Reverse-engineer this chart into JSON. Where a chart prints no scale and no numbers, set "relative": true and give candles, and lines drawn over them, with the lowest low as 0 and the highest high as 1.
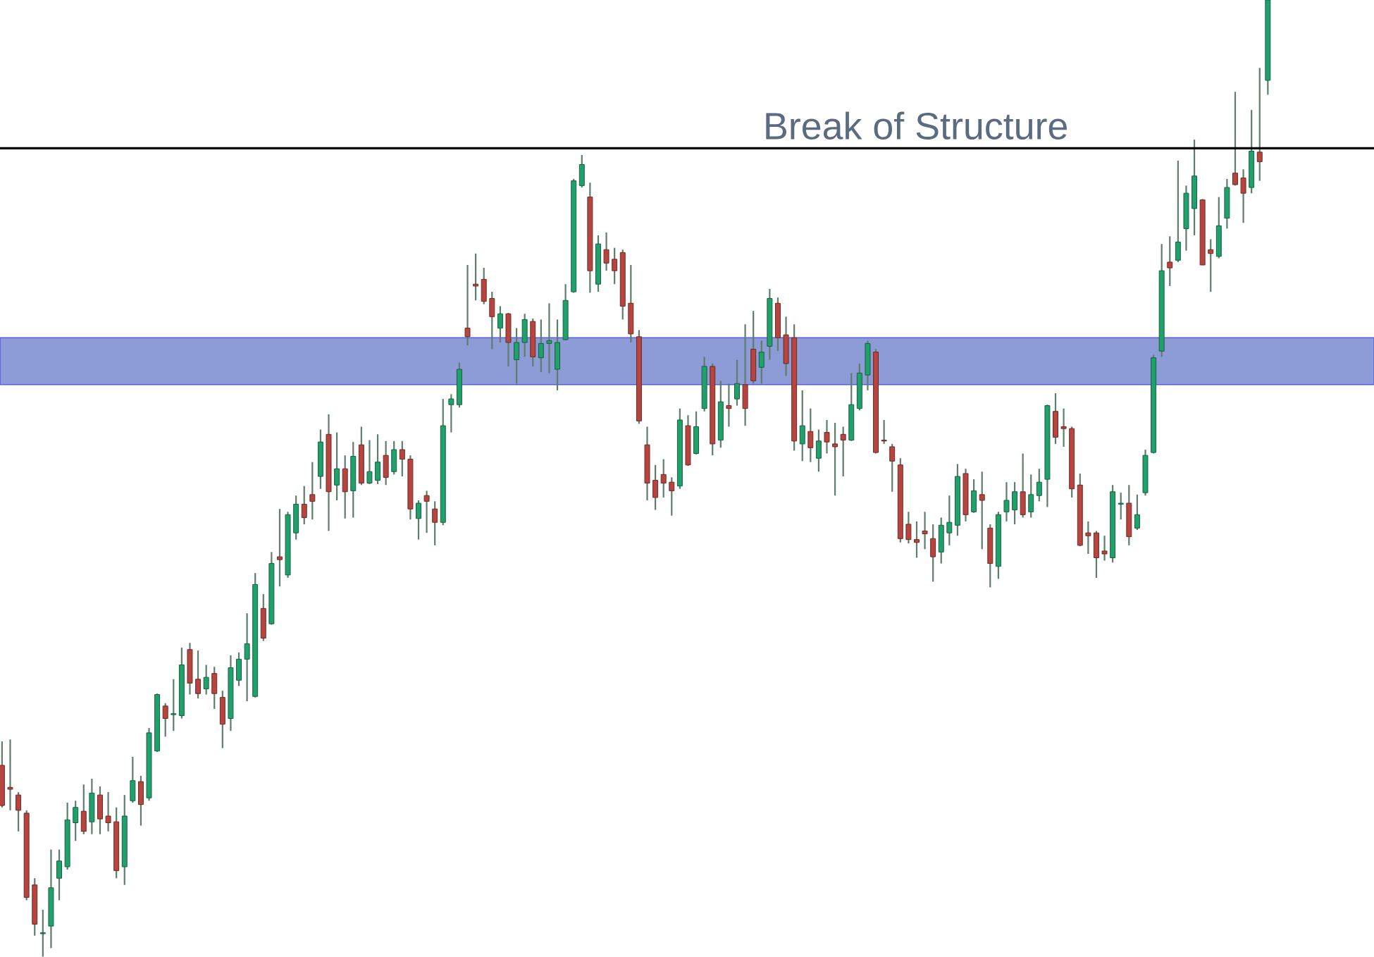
{
  "chart_data": {
    "type": "candlestick",
    "relative": true,
    "categories": [
      null,
      null,
      null,
      null,
      null,
      null,
      null,
      null,
      null,
      null,
      null,
      null,
      null,
      null,
      null,
      null,
      null,
      null,
      null,
      null,
      null,
      null,
      null,
      null,
      null,
      null,
      null,
      null,
      null,
      null,
      null,
      null,
      null,
      null,
      null,
      null,
      null,
      null,
      null,
      null,
      null,
      null,
      null,
      null,
      null,
      null,
      null,
      null,
      null,
      null,
      null,
      null,
      null,
      null,
      null,
      null,
      null,
      null,
      null,
      null,
      null,
      null,
      null,
      null,
      null,
      null,
      null,
      null,
      null,
      null,
      null,
      null,
      null,
      null,
      null,
      null,
      null,
      null,
      null,
      null,
      null,
      null,
      null,
      null,
      null,
      null,
      null,
      null,
      null,
      null,
      null,
      null,
      null,
      null,
      null,
      null,
      null,
      null,
      null,
      null,
      null,
      null,
      null,
      null,
      null,
      null,
      null,
      null,
      null,
      null,
      null,
      null,
      null,
      null,
      null,
      null,
      null,
      null,
      null,
      null,
      null,
      null,
      null,
      null,
      null,
      null,
      null,
      null,
      null,
      null,
      null,
      null,
      null,
      null,
      null,
      null,
      null,
      null,
      null,
      null,
      null,
      null,
      null,
      null,
      null,
      null,
      null,
      null,
      null,
      null,
      null,
      null,
      null,
      null,
      null,
      null
    ],
    "colors": [
      "#b5453e",
      "#b5453e",
      "#b5453e",
      "#b5453e",
      "#b5453e",
      "#22a06b",
      "#22a06b",
      "#22a06b",
      "#22a06b",
      "#22a06b",
      "#b5453e",
      "#22a06b",
      "#b5453e",
      "#b5453e",
      "#b5453e",
      "#22a06b",
      "#22a06b",
      "#b5453e",
      "#22a06b",
      "#22a06b",
      "#b5453e",
      "#22a06b",
      "#22a06b",
      "#b5453e",
      "#b5453e",
      "#22a06b",
      "#b5453e",
      "#b5453e",
      "#22a06b",
      "#22a06b",
      "#22a06b",
      "#22a06b",
      "#b5453e",
      "#22a06b",
      "#b5453e",
      "#22a06b",
      "#22a06b",
      "#b5453e",
      "#b5453e",
      "#22a06b",
      "#b5453e",
      "#22a06b",
      "#b5453e",
      "#22a06b",
      "#b5453e",
      "#22a06b",
      "#22a06b",
      "#b5453e",
      "#22a06b",
      "#b5453e",
      "#b5453e",
      "#22a06b",
      "#b5453e",
      "#b5453e",
      "#22a06b",
      "#22a06b",
      "#22a06b",
      "#b5453e",
      "#b5453e",
      "#b5453e",
      "#b5453e",
      "#22a06b",
      "#b5453e",
      "#22a06b",
      "#22a06b",
      "#b5453e",
      "#22a06b",
      "#22a06b",
      "#22a06b",
      "#22a06b",
      "#22a06b",
      "#22a06b",
      "#b5453e",
      "#22a06b",
      "#b5453e",
      "#b5453e",
      "#b5453e",
      "#b5453e",
      "#b5453e",
      "#b5453e",
      "#b5453e",
      "#b5453e",
      "#b5453e",
      "#22a06b",
      "#b5453e",
      "#22a06b",
      "#22a06b",
      "#b5453e",
      "#22a06b",
      "#b5453e",
      "#22a06b",
      "#b5453e",
      "#b5453e",
      "#22a06b",
      "#22a06b",
      "#b5453e",
      "#b5453e",
      "#b5453e",
      "#22a06b",
      "#b5453e",
      "#22a06b",
      "#b5453e",
      "#b5453e",
      "#b5453e",
      "#22a06b",
      "#22a06b",
      "#22a06b",
      "#b5453e",
      "#b5453e",
      "#b5453e",
      "#b5453e",
      "#b5453e",
      "#b5453e",
      "#b5453e",
      "#b5453e",
      "#22a06b",
      "#22a06b",
      "#22a06b",
      "#b5453e",
      "#22a06b",
      "#b5453e",
      "#b5453e",
      "#22a06b",
      "#22a06b",
      "#22a06b",
      "#b5453e",
      "#22a06b",
      "#22a06b",
      "#22a06b",
      "#b5453e",
      "#b5453e",
      "#b5453e",
      "#b5453e",
      "#b5453e",
      "#b5453e",
      "#b5453e",
      "#22a06b",
      "#22a06b",
      "#b5453e",
      "#22a06b",
      "#22a06b",
      "#22a06b",
      "#22a06b",
      "#b5453e",
      "#22a06b",
      "#22a06b",
      "#22a06b",
      "#b5453e",
      "#b5453e",
      "#22a06b",
      "#22a06b",
      "#b5453e",
      "#b5453e",
      "#22a06b",
      "#b5453e",
      "#22a06b"
    ],
    "ohlc": [
      [
        0.2,
        0.225,
        0.156,
        0.158
      ],
      [
        0.177,
        0.227,
        0.153,
        0.175
      ],
      [
        0.169,
        0.172,
        0.131,
        0.153
      ],
      [
        0.15,
        0.153,
        0.059,
        0.062
      ],
      [
        0.075,
        0.082,
        0.022,
        0.034
      ],
      [
        0.024,
        0.049,
        0.0,
        0.025
      ],
      [
        0.032,
        0.112,
        0.009,
        0.072
      ],
      [
        0.082,
        0.112,
        0.059,
        0.1
      ],
      [
        0.094,
        0.161,
        0.091,
        0.143
      ],
      [
        0.14,
        0.163,
        0.121,
        0.156
      ],
      [
        0.152,
        0.18,
        0.128,
        0.131
      ],
      [
        0.141,
        0.186,
        0.128,
        0.171
      ],
      [
        0.169,
        0.178,
        0.128,
        0.144
      ],
      [
        0.147,
        0.172,
        0.131,
        0.14
      ],
      [
        0.141,
        0.156,
        0.082,
        0.09
      ],
      [
        0.094,
        0.169,
        0.075,
        0.147
      ],
      [
        0.163,
        0.209,
        0.161,
        0.184
      ],
      [
        0.183,
        0.189,
        0.137,
        0.159
      ],
      [
        0.166,
        0.239,
        0.163,
        0.234
      ],
      [
        0.215,
        0.275,
        0.214,
        0.274
      ],
      [
        0.262,
        0.265,
        0.23,
        0.249
      ],
      [
        0.253,
        0.29,
        0.236,
        0.254
      ],
      [
        0.252,
        0.323,
        0.249,
        0.305
      ],
      [
        0.321,
        0.328,
        0.274,
        0.286
      ],
      [
        0.29,
        0.32,
        0.27,
        0.275
      ],
      [
        0.28,
        0.305,
        0.274,
        0.292
      ],
      [
        0.296,
        0.303,
        0.259,
        0.275
      ],
      [
        0.271,
        0.278,
        0.218,
        0.243
      ],
      [
        0.249,
        0.315,
        0.236,
        0.302
      ],
      [
        0.289,
        0.318,
        0.283,
        0.311
      ],
      [
        0.311,
        0.359,
        0.267,
        0.327
      ],
      [
        0.272,
        0.401,
        0.271,
        0.389
      ],
      [
        0.364,
        0.379,
        0.33,
        0.333
      ],
      [
        0.348,
        0.423,
        0.347,
        0.411
      ],
      [
        0.418,
        0.468,
        0.387,
        0.415
      ],
      [
        0.399,
        0.465,
        0.396,
        0.462
      ],
      [
        0.443,
        0.482,
        0.436,
        0.473
      ],
      [
        0.473,
        0.492,
        0.452,
        0.459
      ],
      [
        0.483,
        0.517,
        0.457,
        0.476
      ],
      [
        0.502,
        0.551,
        0.489,
        0.538
      ],
      [
        0.546,
        0.567,
        0.445,
        0.486
      ],
      [
        0.493,
        0.548,
        0.477,
        0.51
      ],
      [
        0.51,
        0.524,
        0.458,
        0.486
      ],
      [
        0.487,
        0.538,
        0.459,
        0.523
      ],
      [
        0.535,
        0.554,
        0.493,
        0.495
      ],
      [
        0.495,
        0.54,
        0.494,
        0.507
      ],
      [
        0.498,
        0.546,
        0.494,
        0.517
      ],
      [
        0.524,
        0.539,
        0.493,
        0.501
      ],
      [
        0.507,
        0.539,
        0.504,
        0.53
      ],
      [
        0.53,
        0.539,
        0.502,
        0.52
      ],
      [
        0.52,
        0.524,
        0.457,
        0.468
      ],
      [
        0.458,
        0.477,
        0.436,
        0.474
      ],
      [
        0.482,
        0.487,
        0.443,
        0.476
      ],
      [
        0.468,
        0.476,
        0.43,
        0.454
      ],
      [
        0.454,
        0.583,
        0.451,
        0.555
      ],
      [
        0.577,
        0.588,
        0.548,
        0.583
      ],
      [
        0.577,
        0.621,
        0.574,
        0.614
      ],
      [
        0.657,
        0.723,
        0.639,
        0.648
      ],
      [
        0.703,
        0.735,
        0.686,
        0.701
      ],
      [
        0.708,
        0.72,
        0.682,
        0.685
      ],
      [
        0.688,
        0.695,
        0.635,
        0.669
      ],
      [
        0.657,
        0.68,
        0.642,
        0.672
      ],
      [
        0.672,
        0.673,
        0.617,
        0.642
      ],
      [
        0.624,
        0.657,
        0.599,
        0.642
      ],
      [
        0.642,
        0.672,
        0.627,
        0.666
      ],
      [
        0.664,
        0.667,
        0.617,
        0.627
      ],
      [
        0.626,
        0.666,
        0.611,
        0.641
      ],
      [
        0.641,
        0.683,
        0.61,
        0.644
      ],
      [
        0.614,
        0.666,
        0.592,
        0.642
      ],
      [
        0.645,
        0.703,
        0.644,
        0.686
      ],
      [
        0.695,
        0.813,
        0.694,
        0.811
      ],
      [
        0.806,
        0.838,
        0.804,
        0.828
      ],
      [
        0.794,
        0.809,
        0.694,
        0.717
      ],
      [
        0.703,
        0.754,
        0.695,
        0.745
      ],
      [
        0.739,
        0.757,
        0.717,
        0.725
      ],
      [
        0.729,
        0.741,
        0.703,
        0.717
      ],
      [
        0.736,
        0.739,
        0.666,
        0.68
      ],
      [
        0.683,
        0.723,
        0.642,
        0.651
      ],
      [
        0.648,
        0.655,
        0.557,
        0.56
      ],
      [
        0.535,
        0.554,
        0.477,
        0.495
      ],
      [
        0.498,
        0.514,
        0.467,
        0.48
      ],
      [
        0.504,
        0.52,
        0.48,
        0.495
      ],
      [
        0.496,
        0.501,
        0.461,
        0.487
      ],
      [
        0.492,
        0.573,
        0.489,
        0.561
      ],
      [
        0.555,
        0.566,
        0.513,
        0.514
      ],
      [
        0.526,
        0.57,
        0.525,
        0.554
      ],
      [
        0.573,
        0.627,
        0.57,
        0.617
      ],
      [
        0.617,
        0.62,
        0.524,
        0.536
      ],
      [
        0.54,
        0.602,
        0.532,
        0.58
      ],
      [
        0.576,
        0.599,
        0.554,
        0.573
      ],
      [
        0.583,
        0.624,
        0.576,
        0.599
      ],
      [
        0.598,
        0.661,
        0.555,
        0.573
      ],
      [
        0.635,
        0.675,
        0.599,
        0.602
      ],
      [
        0.616,
        0.644,
        0.599,
        0.632
      ],
      [
        0.638,
        0.698,
        0.624,
        0.688
      ],
      [
        0.683,
        0.689,
        0.633,
        0.647
      ],
      [
        0.65,
        0.669,
        0.607,
        0.62
      ],
      [
        0.647,
        0.661,
        0.529,
        0.539
      ],
      [
        0.536,
        0.592,
        0.518,
        0.555
      ],
      [
        0.549,
        0.573,
        0.517,
        0.532
      ],
      [
        0.521,
        0.551,
        0.507,
        0.539
      ],
      [
        0.548,
        0.561,
        0.526,
        0.538
      ],
      [
        0.536,
        0.558,
        0.482,
        0.533
      ],
      [
        0.546,
        0.554,
        0.502,
        0.54
      ],
      [
        0.54,
        0.61,
        0.539,
        0.577
      ],
      [
        0.573,
        0.62,
        0.571,
        0.61
      ],
      [
        0.608,
        0.644,
        0.592,
        0.641
      ],
      [
        0.632,
        0.635,
        0.526,
        0.527
      ],
      [
        0.54,
        0.561,
        0.536,
        0.539
      ],
      [
        0.533,
        0.536,
        0.486,
        0.518
      ],
      [
        0.514,
        0.521,
        0.433,
        0.437
      ],
      [
        0.452,
        0.465,
        0.432,
        0.436
      ],
      [
        0.436,
        0.455,
        0.417,
        0.433
      ],
      [
        0.445,
        0.465,
        0.426,
        0.442
      ],
      [
        0.437,
        0.452,
        0.392,
        0.418
      ],
      [
        0.423,
        0.459,
        0.411,
        0.451
      ],
      [
        0.443,
        0.482,
        0.43,
        0.454
      ],
      [
        0.451,
        0.515,
        0.44,
        0.502
      ],
      [
        0.505,
        0.51,
        0.455,
        0.462
      ],
      [
        0.465,
        0.499,
        0.464,
        0.487
      ],
      [
        0.483,
        0.507,
        0.426,
        0.477
      ],
      [
        0.448,
        0.452,
        0.386,
        0.411
      ],
      [
        0.408,
        0.465,
        0.395,
        0.462
      ],
      [
        0.465,
        0.496,
        0.455,
        0.477
      ],
      [
        0.467,
        0.496,
        0.452,
        0.486
      ],
      [
        0.486,
        0.526,
        0.459,
        0.462
      ],
      [
        0.465,
        0.504,
        0.459,
        0.483
      ],
      [
        0.482,
        0.51,
        0.476,
        0.496
      ],
      [
        0.499,
        0.577,
        0.47,
        0.576
      ],
      [
        0.57,
        0.589,
        0.536,
        0.543
      ],
      [
        0.554,
        0.573,
        0.533,
        0.552
      ],
      [
        0.552,
        0.554,
        0.48,
        0.489
      ],
      [
        0.493,
        0.505,
        0.429,
        0.43
      ],
      [
        0.443,
        0.455,
        0.421,
        0.44
      ],
      [
        0.443,
        0.445,
        0.396,
        0.417
      ],
      [
        0.424,
        0.44,
        0.414,
        0.421
      ],
      [
        0.417,
        0.493,
        0.412,
        0.486
      ],
      [
        0.473,
        0.485,
        0.457,
        0.474
      ],
      [
        0.474,
        0.493,
        0.43,
        0.439
      ],
      [
        0.448,
        0.483,
        0.446,
        0.462
      ],
      [
        0.485,
        0.53,
        0.482,
        0.524
      ],
      [
        0.527,
        0.629,
        0.526,
        0.626
      ],
      [
        0.633,
        0.745,
        0.627,
        0.717
      ],
      [
        0.726,
        0.753,
        0.701,
        0.72
      ],
      [
        0.728,
        0.832,
        0.726,
        0.747
      ],
      [
        0.761,
        0.806,
        0.738,
        0.798
      ],
      [
        0.782,
        0.854,
        0.754,
        0.816
      ],
      [
        0.791,
        0.792,
        0.723,
        0.723
      ],
      [
        0.739,
        0.75,
        0.695,
        0.735
      ],
      [
        0.732,
        0.794,
        0.73,
        0.764
      ],
      [
        0.772,
        0.813,
        0.761,
        0.804
      ],
      [
        0.819,
        0.904,
        0.806,
        0.807
      ],
      [
        0.814,
        0.823,
        0.767,
        0.798
      ],
      [
        0.804,
        0.885,
        0.798,
        0.842
      ],
      [
        0.841,
        0.929,
        0.811,
        0.831
      ],
      [
        0.916,
        1.0,
        0.901,
        1.0
      ]
    ],
    "ref_lines": [
      {
        "axis": "y",
        "value": 0.845,
        "label": "Break of Structure",
        "color": "#000000"
      }
    ],
    "bands": [
      {
        "axis": "y",
        "from": 0.598,
        "to": 0.647,
        "color": "#8d9bd6"
      }
    ]
  }
}
